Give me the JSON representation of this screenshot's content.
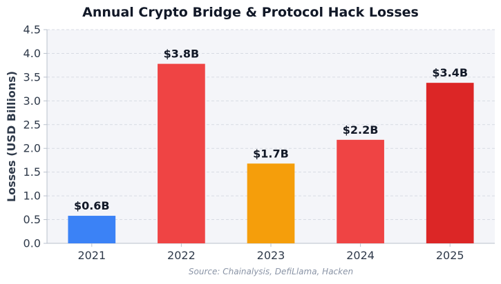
{
  "chart_data": {
    "type": "bar",
    "title": "Annual Crypto Bridge & Protocol Hack Losses",
    "xlabel": "",
    "ylabel": "Losses (USD Billions)",
    "categories": [
      "2021",
      "2022",
      "2023",
      "2024",
      "2025"
    ],
    "values": [
      0.58,
      3.78,
      1.68,
      2.18,
      3.38
    ],
    "value_labels": [
      "$0.6B",
      "$3.8B",
      "$1.7B",
      "$2.2B",
      "$3.4B"
    ],
    "bar_colors": [
      "#3b82f6",
      "#ef4444",
      "#f59e0b",
      "#ef4444",
      "#dc2626"
    ],
    "ylim": [
      0,
      4.5
    ],
    "yticks": [
      "0.0",
      "0.5",
      "1.0",
      "1.5",
      "2.0",
      "2.5",
      "3.0",
      "3.5",
      "4.0",
      "4.5"
    ],
    "grid": true,
    "source": "Source: Chainalysis, DefiLlama, Hacken"
  }
}
